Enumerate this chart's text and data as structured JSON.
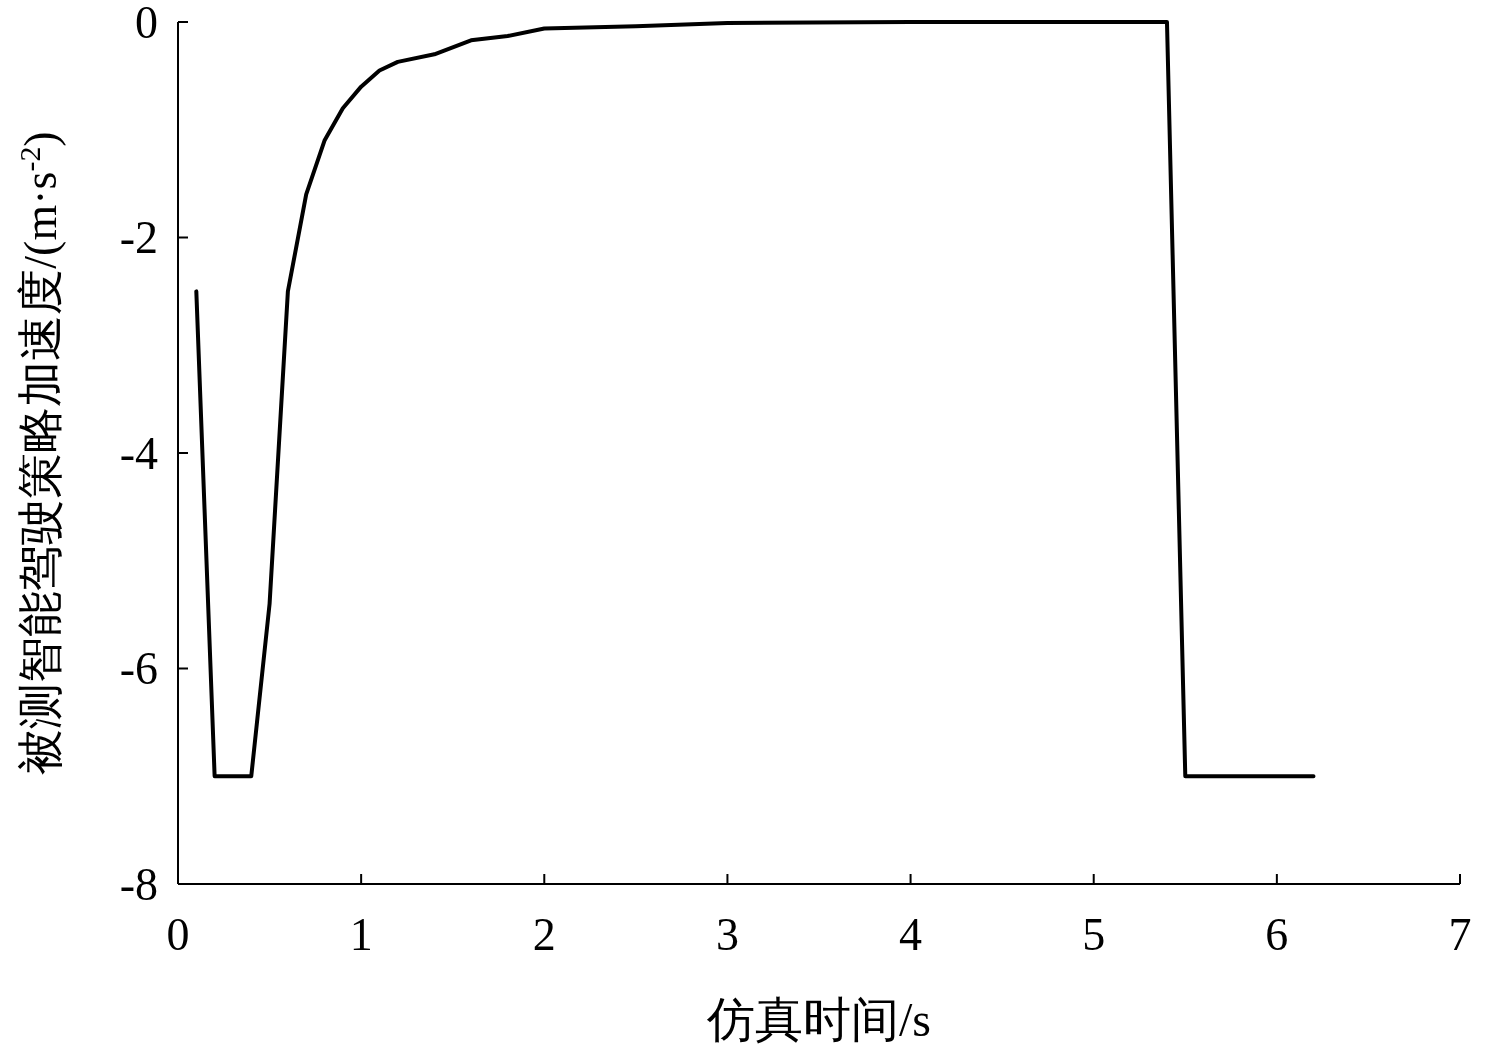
{
  "chart_data": {
    "type": "line",
    "xlabel": "仿真时间/s",
    "ylabel": "被测智能驾驶策略加速度/(m·s$^{-2}$)",
    "x": [
      0.1,
      0.2,
      0.4,
      0.5,
      0.6,
      0.7,
      0.8,
      0.9,
      1.0,
      1.1,
      1.2,
      1.4,
      1.6,
      1.8,
      2.0,
      2.5,
      3.0,
      4.0,
      5.4,
      5.5,
      6.2
    ],
    "series": [
      {
        "color": "#000000",
        "values": [
          -2.5,
          -7,
          -7,
          -5.4,
          -2.5,
          -1.6,
          -1.1,
          -0.8,
          -0.6,
          -0.45,
          -0.37,
          -0.3,
          -0.17,
          -0.13,
          -0.06,
          -0.04,
          -0.01,
          0,
          0,
          -7,
          -7
        ]
      }
    ],
    "xlim": [
      0,
      7
    ],
    "xticks": [
      0,
      1,
      2,
      3,
      4,
      5,
      6,
      7
    ],
    "ylim": [
      -8,
      0
    ],
    "yticks": [
      -8,
      -6,
      -4,
      -2,
      0
    ],
    "grid": false,
    "marker": "none",
    "line_style": "solid"
  }
}
